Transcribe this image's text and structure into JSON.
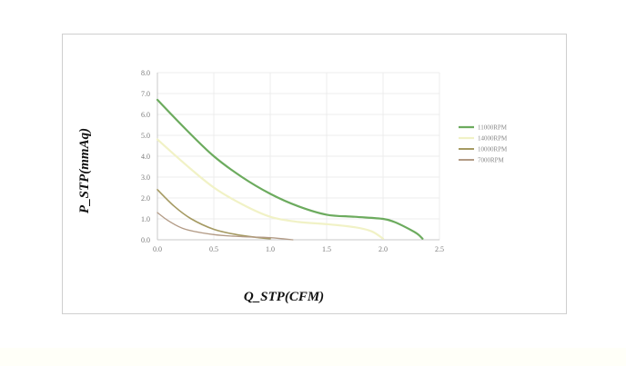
{
  "chart_data": {
    "type": "line",
    "xlabel": "Q_STP(CFM)",
    "ylabel": "P_STP(mmAq)",
    "xlim": [
      0,
      2.5
    ],
    "ylim": [
      0,
      8
    ],
    "x_ticks": [
      "0.0",
      "0.5",
      "1.0",
      "1.5",
      "2.0",
      "2.5"
    ],
    "y_ticks": [
      "0.0",
      "1.0",
      "2.0",
      "3.0",
      "4.0",
      "5.0",
      "6.0",
      "7.0",
      "8.0"
    ],
    "grid": true,
    "legend_position": "right",
    "series": [
      {
        "name": "11000RPM",
        "color": "#6cab5e",
        "width": 2.2,
        "x": [
          0,
          0.25,
          0.5,
          0.75,
          1.0,
          1.25,
          1.5,
          1.75,
          2.0,
          2.1,
          2.2,
          2.3,
          2.35
        ],
        "y": [
          6.7,
          5.3,
          4.0,
          3.0,
          2.2,
          1.6,
          1.2,
          1.1,
          1.0,
          0.85,
          0.6,
          0.3,
          0.05
        ]
      },
      {
        "name": "14000RPM",
        "color": "#f1f2c6",
        "width": 2.2,
        "x": [
          0,
          0.25,
          0.5,
          0.75,
          1.0,
          1.25,
          1.5,
          1.75,
          1.9,
          2.0
        ],
        "y": [
          4.8,
          3.6,
          2.5,
          1.7,
          1.1,
          0.85,
          0.75,
          0.6,
          0.4,
          0.05
        ]
      },
      {
        "name": "10000RPM",
        "color": "#a59a62",
        "width": 1.6,
        "x": [
          0,
          0.15,
          0.3,
          0.5,
          0.7,
          0.9,
          1.0
        ],
        "y": [
          2.4,
          1.6,
          1.0,
          0.5,
          0.25,
          0.1,
          0.05
        ]
      },
      {
        "name": "7000RPM",
        "color": "#b39b86",
        "width": 1.3,
        "x": [
          0,
          0.1,
          0.25,
          0.5,
          0.75,
          1.0,
          1.2
        ],
        "y": [
          1.3,
          0.9,
          0.5,
          0.25,
          0.15,
          0.1,
          0.0
        ]
      }
    ]
  }
}
